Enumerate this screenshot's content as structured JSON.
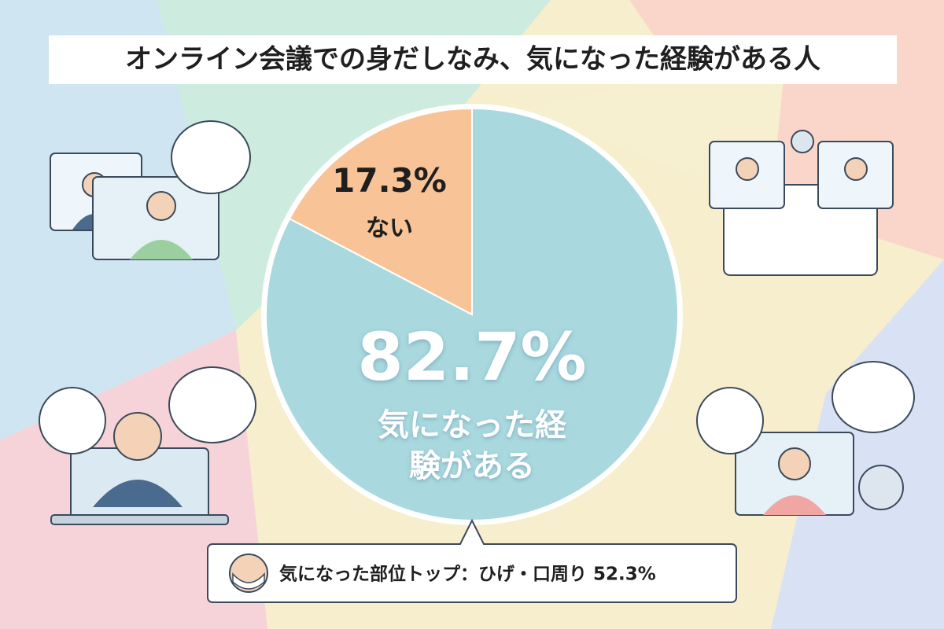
{
  "chart_data": {
    "type": "pie",
    "title": "オンライン会議での身だしなみ、気になった経験がある人",
    "categories": [
      "気になった経験がある",
      "ない"
    ],
    "values": [
      82.7,
      17.3
    ],
    "value_labels": [
      "82.7%",
      "17.3%"
    ],
    "colors": [
      "#a9d9df",
      "#f8c497"
    ],
    "annotation": "気になった部位トップ：ひげ・口周り 52.3%"
  }
}
